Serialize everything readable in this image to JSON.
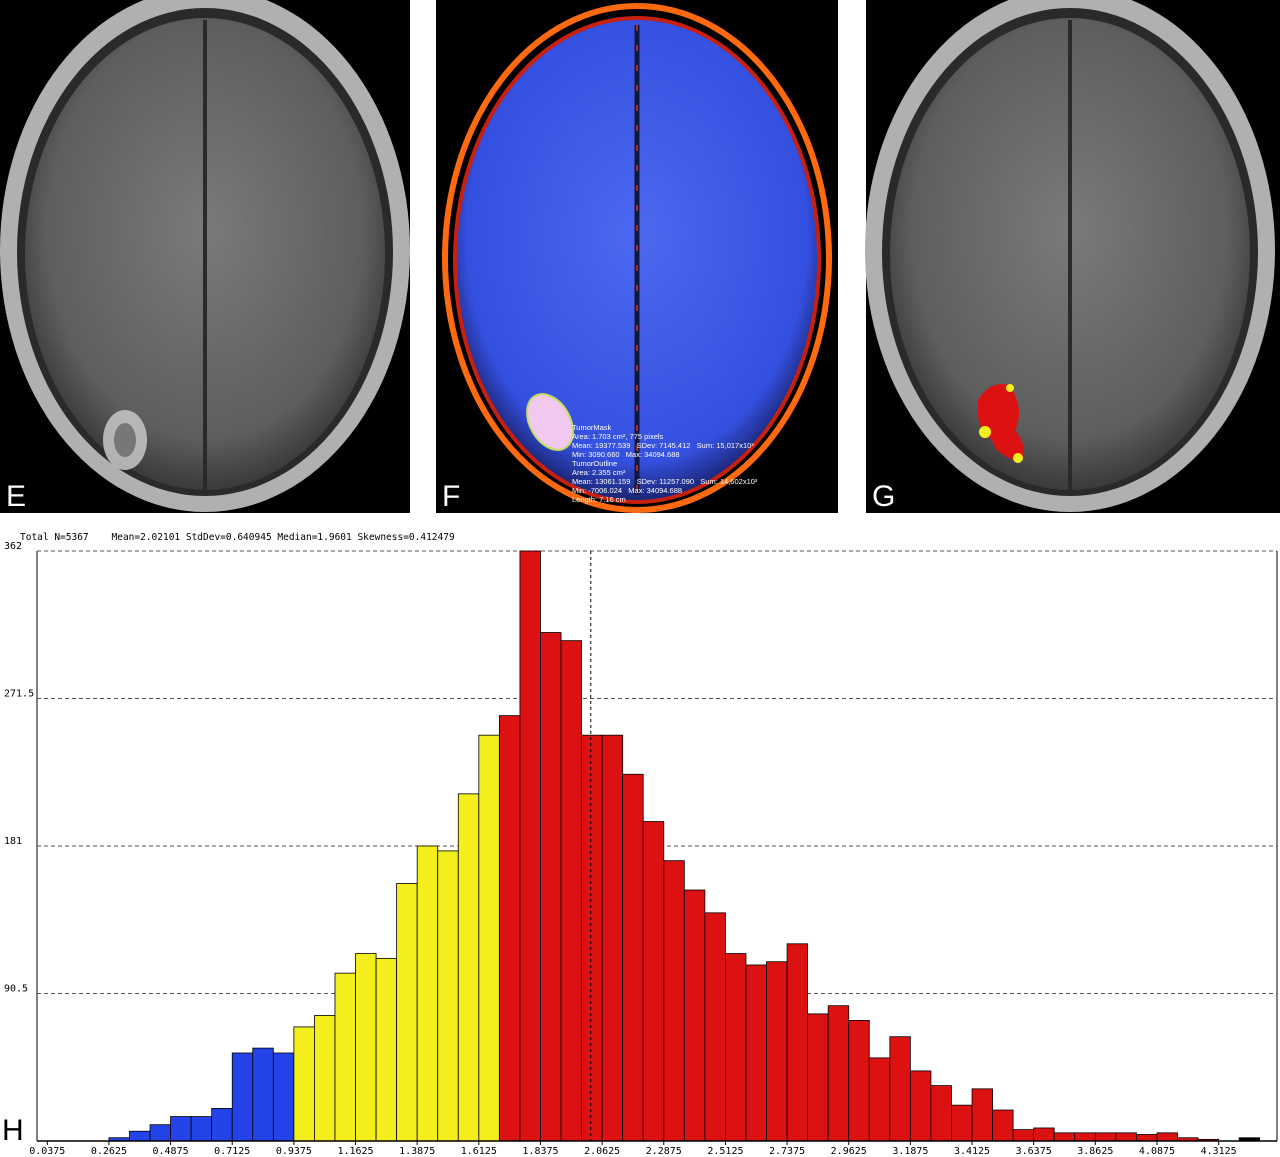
{
  "panels": [
    {
      "label": "E"
    },
    {
      "label": "F",
      "annotations": [
        "TumorMask",
        "Area: 1.703 cm², 775 pixels",
        "Mean: 19377.539   SDev: 7145.412   Sum: 15,017x10³",
        "Min: 3090.660   Max: 34094.688",
        "TumorOutline",
        "Area: 2.355 cm²",
        "Mean: 13061.159   SDev: 11257.090   Sum: 14,602x10³",
        "Min: -7006.024   Max: 34094.688",
        "Length: 7.16 cm"
      ]
    },
    {
      "label": "G"
    },
    {
      "label": "H"
    }
  ],
  "chart_data": {
    "type": "histogram",
    "subtitle": "Total N=5367    Mean=2.02101 StdDev=0.640945 Median=1.9601 Skewness=0.412479",
    "mean": 2.02101,
    "bins": [
      0.2625,
      0.3375,
      0.4125,
      0.4875,
      0.5625,
      0.6375,
      0.7125,
      0.7875,
      0.8625,
      0.9375,
      1.0125,
      1.0875,
      1.1625,
      1.2375,
      1.3125,
      1.3875,
      1.4625,
      1.5375,
      1.6125,
      1.6875,
      1.7625,
      1.8375,
      1.9125,
      1.9875,
      2.0625,
      2.1375,
      2.2125,
      2.2875,
      2.3625,
      2.4375,
      2.5125,
      2.5875,
      2.6625,
      2.7375,
      2.8125,
      2.8875,
      2.9625,
      3.0375,
      3.1125,
      3.1875,
      3.2625,
      3.3375,
      3.4125,
      3.4875,
      3.5625,
      3.6375,
      3.7125,
      3.7875,
      3.8625,
      3.9375,
      4.0125,
      4.0875,
      4.1625,
      4.2375,
      4.3125,
      4.3875,
      4.4625
    ],
    "values": [
      2,
      6,
      10,
      15,
      15,
      20,
      54,
      57,
      54,
      70,
      77,
      103,
      115,
      112,
      158,
      181,
      178,
      213,
      249,
      261,
      362,
      312,
      307,
      249,
      249,
      225,
      196,
      172,
      154,
      140,
      115,
      108,
      110,
      121,
      78,
      83,
      74,
      51,
      64,
      43,
      34,
      22,
      32,
      19,
      7,
      8,
      5,
      5,
      5,
      5,
      4,
      5,
      2,
      1,
      0,
      2
    ],
    "colors": [
      "#2443e8",
      "#2443e8",
      "#2443e8",
      "#2443e8",
      "#2443e8",
      "#2443e8",
      "#2443e8",
      "#2443e8",
      "#2443e8",
      "#f4ee1c",
      "#f4ee1c",
      "#f4ee1c",
      "#f4ee1c",
      "#f4ee1c",
      "#f4ee1c",
      "#f4ee1c",
      "#f4ee1c",
      "#f4ee1c",
      "#f4ee1c",
      "#dc1212",
      "#dc1212",
      "#dc1212",
      "#dc1212",
      "#dc1212",
      "#dc1212",
      "#dc1212",
      "#dc1212",
      "#dc1212",
      "#dc1212",
      "#dc1212",
      "#dc1212",
      "#dc1212",
      "#dc1212",
      "#dc1212",
      "#dc1212",
      "#dc1212",
      "#dc1212",
      "#dc1212",
      "#dc1212",
      "#dc1212",
      "#dc1212",
      "#dc1212",
      "#dc1212",
      "#dc1212",
      "#dc1212",
      "#dc1212",
      "#dc1212",
      "#dc1212",
      "#dc1212",
      "#dc1212",
      "#dc1212",
      "#dc1212",
      "#dc1212",
      "#dc1212",
      "#dc1212"
    ],
    "xlim": [
      0,
      4.5
    ],
    "xticks": [
      0.0375,
      0.2625,
      0.4875,
      0.7125,
      0.9375,
      1.1625,
      1.3875,
      1.6125,
      1.8375,
      2.0625,
      2.2875,
      2.5125,
      2.7375,
      2.9625,
      3.1875,
      3.4125,
      3.6375,
      3.8625,
      4.0875,
      4.3125
    ],
    "ylim": [
      0,
      362
    ],
    "yticks": [
      90.5,
      181,
      271.5,
      362
    ],
    "grid": true
  }
}
